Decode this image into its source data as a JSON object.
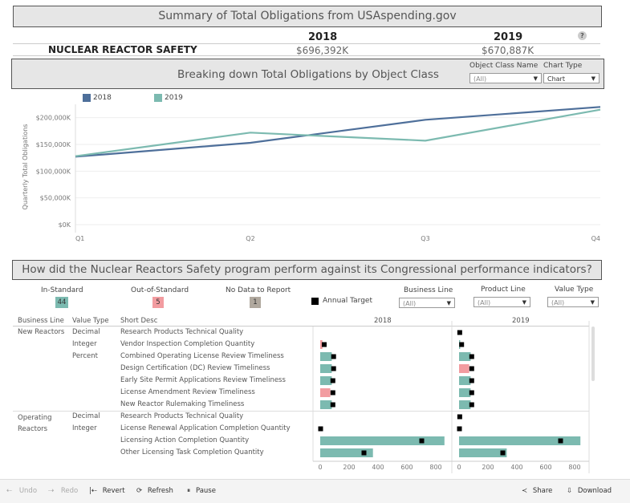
{
  "summary": {
    "title": "Summary of Total Obligations from USAspending.gov",
    "program": "NUCLEAR REACTOR SAFETY",
    "years": [
      "2018",
      "2019"
    ],
    "values": [
      "$696,392K",
      "$670,887K"
    ],
    "help_label": "?"
  },
  "breakdown": {
    "title": "Breaking down Total Obligations by Object Class",
    "object_class_label": "Object Class Name",
    "object_class_value": "(All)",
    "chart_type_label": "Chart Type",
    "chart_type_value": "Chart"
  },
  "chart_data": [
    {
      "type": "line",
      "x": [
        "Q1",
        "Q2",
        "Q3",
        "Q4"
      ],
      "ylabel": "Quarterly Total Obligations",
      "yticks": [
        "$0K",
        "$50,000K",
        "$100,000K",
        "$150,000K",
        "$200,000K"
      ],
      "ylim": [
        0,
        225000
      ],
      "legend_position": "top-left",
      "series": [
        {
          "name": "2018",
          "color": "#4e6f9a",
          "values": [
            127000,
            153000,
            196000,
            220000
          ]
        },
        {
          "name": "2019",
          "color": "#7cbab0",
          "values": [
            128000,
            172000,
            157000,
            215000
          ]
        }
      ]
    },
    {
      "type": "bar",
      "panels": [
        "2018",
        "2019"
      ],
      "xticks": [
        0,
        200,
        400,
        600,
        800
      ],
      "xlim": [
        0,
        860
      ],
      "legend": {
        "annual_target_label": "Annual Target"
      },
      "rows": [
        {
          "bl": "New Reactors",
          "vt": "Decimal",
          "desc": "Research Products Technical Quality",
          "v2018": null,
          "t2018": null,
          "c2018": null,
          "v2019": 0,
          "t2019": 2,
          "c2019": null
        },
        {
          "bl": "",
          "vt": "Integer",
          "desc": "Vendor Inspection Completion Quantity",
          "v2018": 15,
          "t2018": 25,
          "c2018": "pink",
          "v2019": 8,
          "t2019": 15,
          "c2019": "teal"
        },
        {
          "bl": "",
          "vt": "Percent",
          "desc": "Combined Operating License Review Timeliness",
          "v2018": 80,
          "t2018": 90,
          "c2018": "teal",
          "v2019": 80,
          "t2019": 85,
          "c2019": "teal"
        },
        {
          "bl": "",
          "vt": "",
          "desc": "Design Certification (DC) Review Timeliness",
          "v2018": 80,
          "t2018": 90,
          "c2018": "teal",
          "v2019": 70,
          "t2019": 85,
          "c2019": "pink"
        },
        {
          "bl": "",
          "vt": "",
          "desc": "Early Site Permit Applications Review Timeliness",
          "v2018": 80,
          "t2018": 85,
          "c2018": "teal",
          "v2019": 80,
          "t2019": 85,
          "c2019": "teal"
        },
        {
          "bl": "",
          "vt": "",
          "desc": "License Amendment Review Timeliness",
          "v2018": 70,
          "t2018": 85,
          "c2018": "pink",
          "v2019": 80,
          "t2019": 85,
          "c2019": "teal"
        },
        {
          "bl": "",
          "vt": "",
          "desc": "New Reactor Rulemaking Timeliness",
          "v2018": 80,
          "t2018": 85,
          "c2018": "teal",
          "v2019": 80,
          "t2019": 85,
          "c2019": "teal"
        },
        {
          "bl": "Operating Reactors",
          "vt": "Decimal",
          "desc": "Research Products Technical Quality",
          "v2018": null,
          "t2018": null,
          "c2018": null,
          "v2019": 0,
          "t2019": 2,
          "c2019": null
        },
        {
          "bl": "",
          "vt": "Integer",
          "desc": "License Renewal Application Completion Quantity",
          "v2018": 0,
          "t2018": 0,
          "c2018": null,
          "v2019": 0,
          "t2019": 0,
          "c2019": null
        },
        {
          "bl": "",
          "vt": "",
          "desc": "Licensing Action Completion Quantity",
          "v2018": 860,
          "t2018": 700,
          "c2018": "teal",
          "v2019": 840,
          "t2019": 700,
          "c2019": "teal"
        },
        {
          "bl": "",
          "vt": "",
          "desc": "Other Licensing Task Completion Quantity",
          "v2018": 365,
          "t2018": 300,
          "c2018": "teal",
          "v2019": 330,
          "t2019": 300,
          "c2019": "teal"
        }
      ]
    }
  ],
  "performance": {
    "title": "How did the Nuclear Reactors Safety program perform against its Congressional performance indicators?",
    "in_standard_label": "In-Standard",
    "in_standard_count": "44",
    "out_standard_label": "Out-of-Standard",
    "out_standard_count": "5",
    "no_data_label": "No Data to Report",
    "no_data_count": "1",
    "annual_target_label": "Annual Target",
    "business_line_label": "Business Line",
    "business_line_value": "(All)",
    "product_line_label": "Product Line",
    "product_line_value": "(All)",
    "value_type_label": "Value Type",
    "value_type_value": "(All)",
    "col_business_line": "Business Line",
    "col_value_type": "Value Type",
    "col_short_desc": "Short Desc",
    "year_2018": "2018",
    "year_2019": "2019",
    "colors": {
      "teal": "#7cbab0",
      "pink": "#f29ca0",
      "gray": "#b0a89e",
      "navy": "#4e6f9a"
    }
  },
  "toolbar": {
    "undo": "Undo",
    "redo": "Redo",
    "revert": "Revert",
    "refresh": "Refresh",
    "pause": "Pause",
    "share": "Share",
    "download": "Download"
  }
}
